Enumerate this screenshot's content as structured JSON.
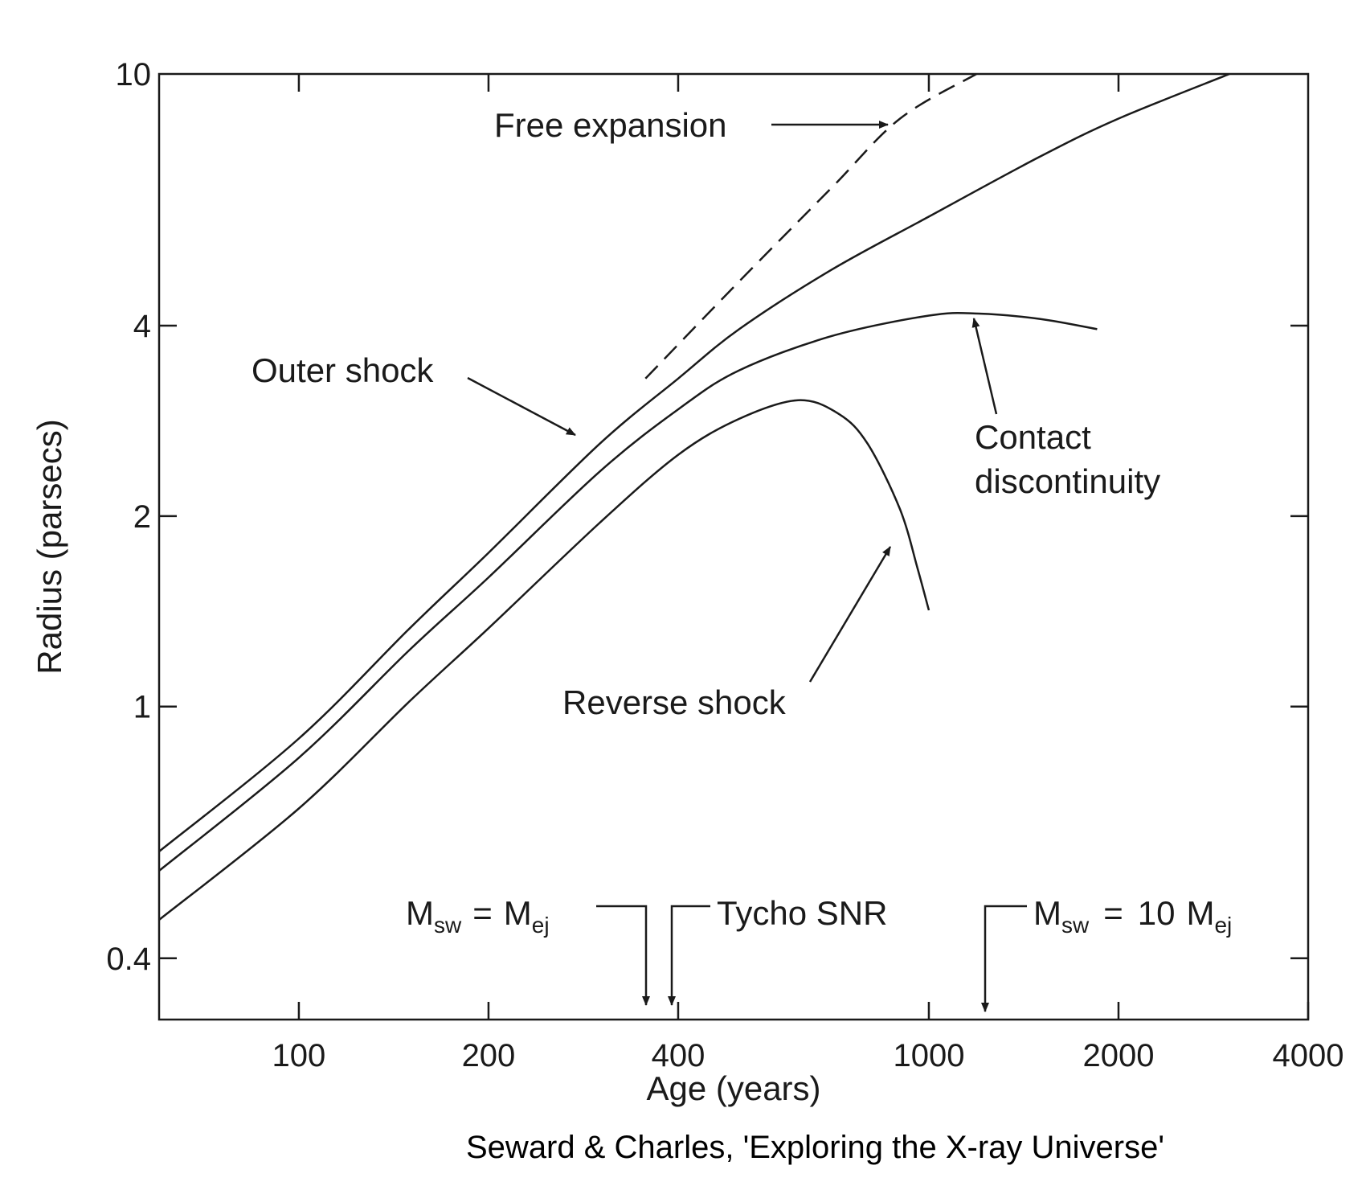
{
  "chart_data": {
    "type": "line",
    "xlabel": "Age (years)",
    "ylabel": "Radius (parsecs)",
    "xscale": "log",
    "yscale": "log",
    "xlim": [
      60,
      4000
    ],
    "ylim": [
      0.32,
      10
    ],
    "x_ticks": [
      100,
      200,
      400,
      1000,
      2000,
      4000
    ],
    "x_tick_labels": [
      "100",
      "200",
      "400",
      "1000",
      "2000",
      "4000"
    ],
    "y_ticks": [
      0.4,
      1,
      2,
      4,
      10
    ],
    "y_tick_labels": [
      "0.4",
      "1",
      "2",
      "4",
      "10"
    ],
    "grid": false,
    "series": [
      {
        "name": "Free expansion",
        "style": "dashed",
        "x": [
          355,
          500,
          700,
          900,
          1190
        ],
        "y": [
          3.3,
          4.7,
          6.6,
          8.5,
          10.0
        ]
      },
      {
        "name": "Outer shock",
        "style": "solid",
        "x": [
          60,
          100,
          150,
          200,
          300,
          400,
          500,
          700,
          1000,
          1500,
          2000,
          3000
        ],
        "y": [
          0.59,
          0.89,
          1.33,
          1.75,
          2.6,
          3.3,
          3.95,
          4.9,
          5.95,
          7.4,
          8.5,
          10.0
        ]
      },
      {
        "name": "Contact discontinuity",
        "style": "solid",
        "x": [
          60,
          100,
          150,
          200,
          300,
          400,
          500,
          700,
          1000,
          1200,
          1500,
          1850
        ],
        "y": [
          0.55,
          0.83,
          1.23,
          1.6,
          2.35,
          2.95,
          3.4,
          3.85,
          4.15,
          4.18,
          4.1,
          3.95
        ]
      },
      {
        "name": "Reverse shock",
        "style": "solid",
        "x": [
          60,
          100,
          150,
          200,
          300,
          400,
          500,
          620,
          720,
          800,
          900,
          960,
          1000
        ],
        "y": [
          0.46,
          0.69,
          1.02,
          1.33,
          1.95,
          2.5,
          2.85,
          3.05,
          2.9,
          2.6,
          2.05,
          1.65,
          1.42
        ]
      }
    ],
    "annotations": [
      {
        "text": "Free expansion",
        "points_to": [
          920,
          8.8
        ]
      },
      {
        "text": "Outer shock",
        "points_to": [
          290,
          2.6
        ]
      },
      {
        "text": "Contact discontinuity",
        "lines": [
          "Contact",
          "discontinuity"
        ],
        "points_to": [
          1180,
          4.05
        ]
      },
      {
        "text": "Reverse shock",
        "points_to": [
          910,
          1.9
        ]
      }
    ],
    "markers": [
      {
        "text": "M_sw = M_ej",
        "x": 375
      },
      {
        "text": "Tycho SNR",
        "x": 410
      },
      {
        "text": "M_sw = 10 M_ej",
        "x": 1300
      }
    ]
  },
  "labels": {
    "free_expansion": "Free expansion",
    "outer_shock": "Outer shock",
    "contact_line1": "Contact",
    "contact_line2": "discontinuity",
    "reverse_shock": "Reverse shock",
    "tycho": "Tycho SNR",
    "m": "M",
    "sw": "sw",
    "ej": "ej",
    "eq": "=",
    "ten": "10"
  },
  "credit": "Seward & Charles, 'Exploring the X-ray Universe'"
}
